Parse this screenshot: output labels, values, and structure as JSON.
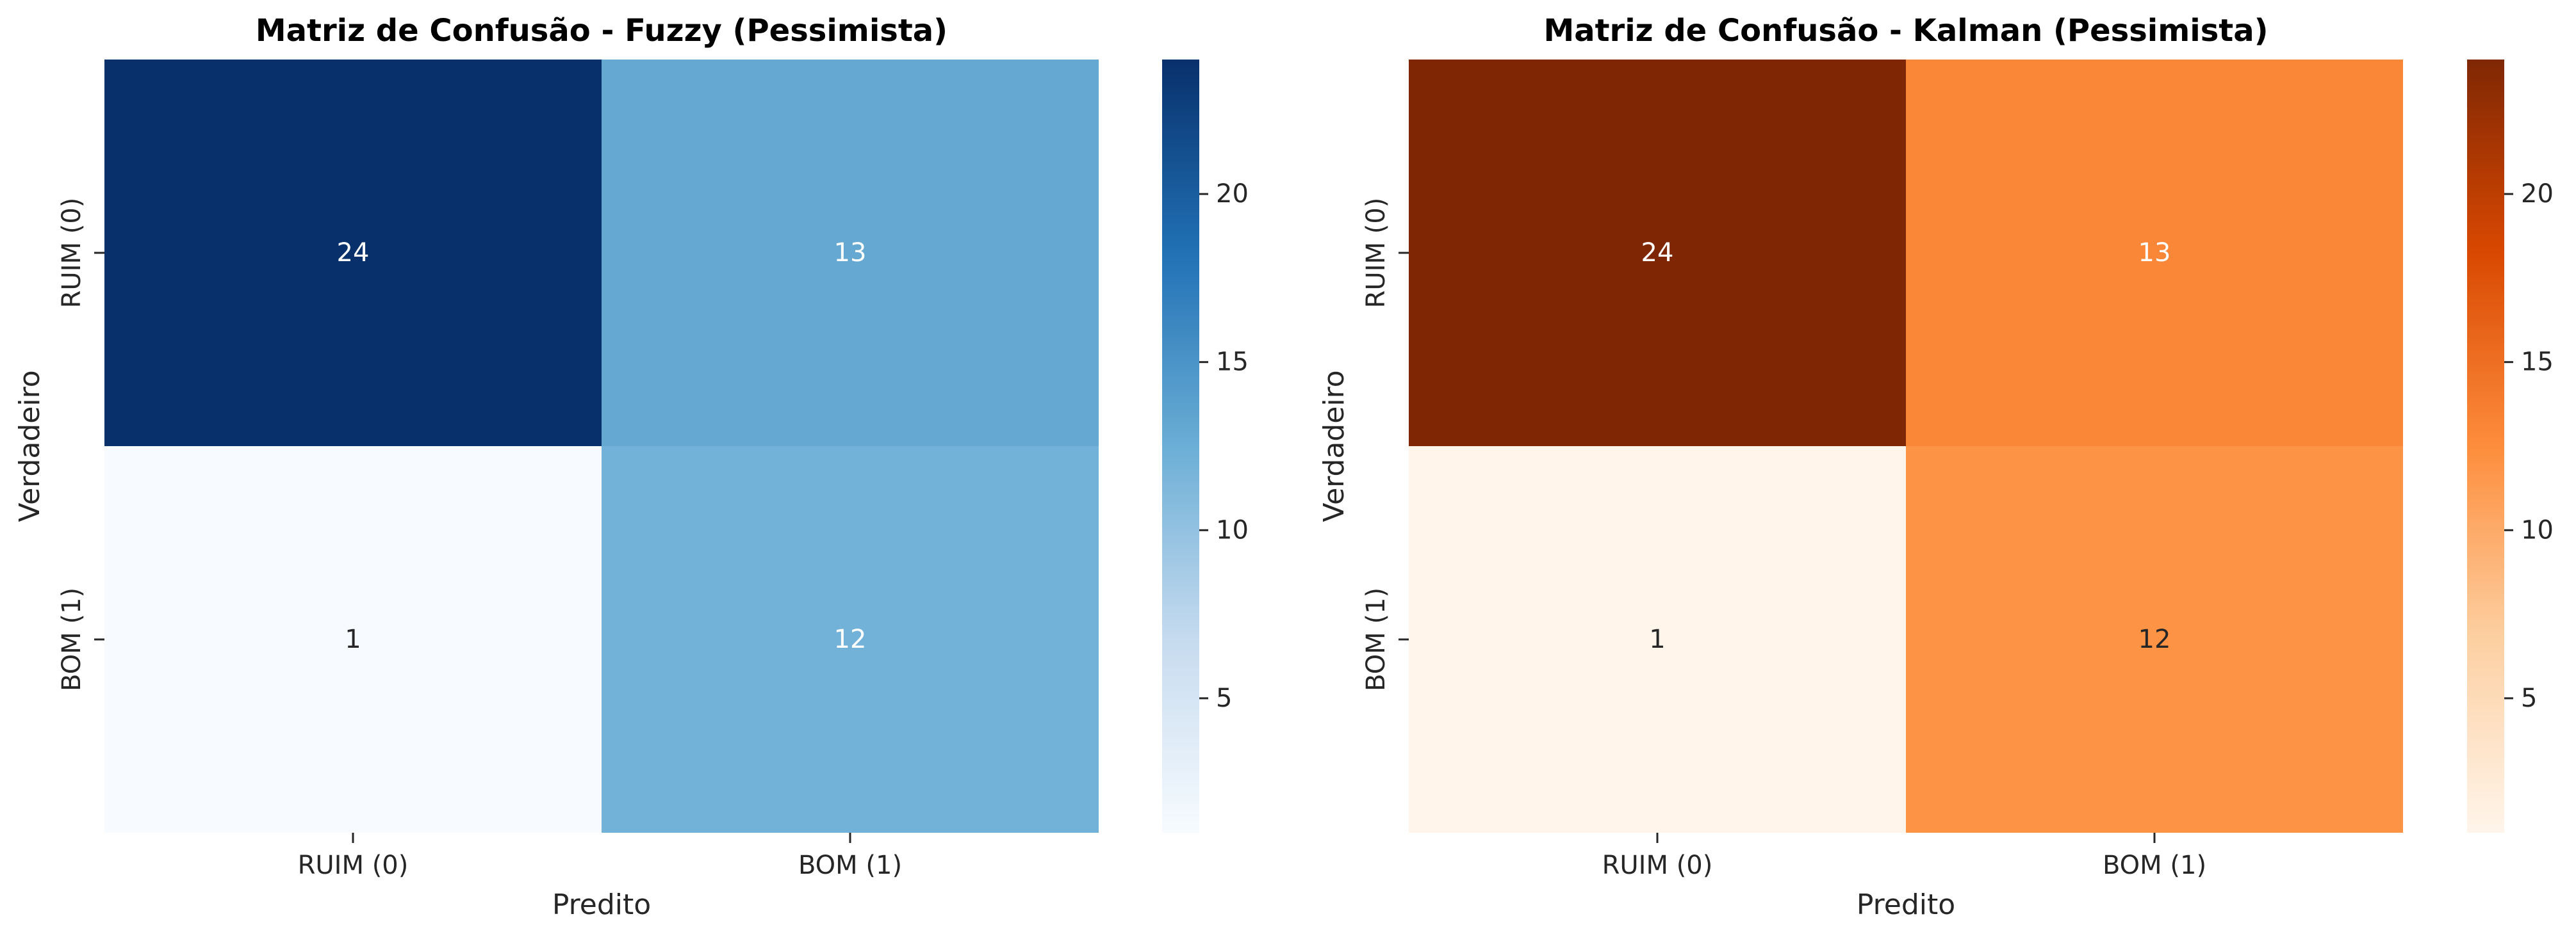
{
  "chart_data": [
    {
      "type": "heatmap",
      "title": "Matriz de Confusão - Fuzzy (Pessimista)",
      "xlabel": "Predito",
      "ylabel": "Verdadeiro",
      "x_categories": [
        "RUIM (0)",
        "BOM (1)"
      ],
      "y_categories": [
        "RUIM (0)",
        "BOM (1)"
      ],
      "values": [
        [
          24,
          13
        ],
        [
          1,
          12
        ]
      ],
      "colormap": "Blues",
      "colors": {
        "low": "#f7fbff",
        "mid_low": "#c6dbef",
        "mid": "#6baed6",
        "mid_high": "#2171b5",
        "high": "#08306b"
      },
      "colorbar": {
        "min": 1,
        "max": 24,
        "ticks": [
          5,
          10,
          15,
          20
        ]
      }
    },
    {
      "type": "heatmap",
      "title": "Matriz de Confusão - Kalman (Pessimista)",
      "xlabel": "Predito",
      "ylabel": "Verdadeiro",
      "x_categories": [
        "RUIM (0)",
        "BOM (1)"
      ],
      "y_categories": [
        "RUIM (0)",
        "BOM (1)"
      ],
      "values": [
        [
          24,
          13
        ],
        [
          1,
          12
        ]
      ],
      "colormap": "Oranges",
      "colors": {
        "low": "#fff5eb",
        "mid_low": "#fdd0a2",
        "mid": "#fd8d3c",
        "mid_high": "#d94801",
        "high": "#7f2704"
      },
      "colorbar": {
        "min": 1,
        "max": 24,
        "ticks": [
          5,
          10,
          15,
          20
        ]
      }
    }
  ]
}
